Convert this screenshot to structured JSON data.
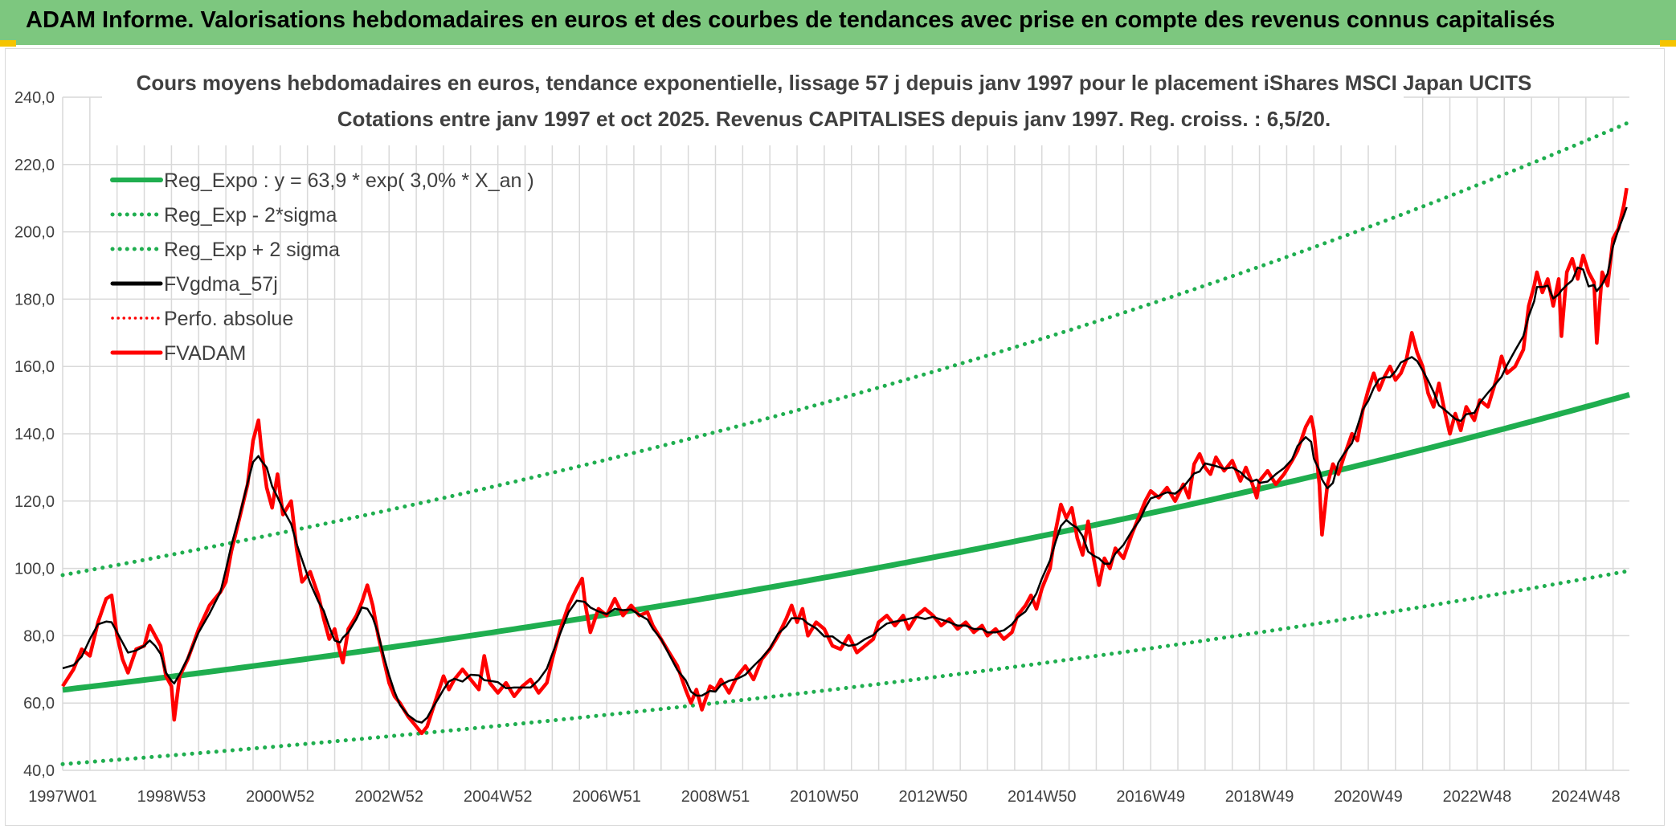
{
  "banner": {
    "title": "ADAM Informe. Valorisations hebdomadaires en euros et des courbes de tendances avec prise en compte des revenus connus capitalisés"
  },
  "colors": {
    "banner": "#7dc77f",
    "regression": "#1fae4f",
    "fvgdma": "#000000",
    "fvadam": "#ff0000",
    "grid": "#d9d9d9"
  },
  "chart_data": {
    "type": "line",
    "title": "Cours moyens hebdomadaires en euros, tendance exponentielle, lissage 57 j depuis janv 1997 pour le placement iShares MSCI Japan UCITS",
    "subtitle": "Cotations entre janv 1997 et oct 2025. Revenus CAPITALISES depuis janv 1997. Reg. croiss. : 6,5/20.",
    "xlabel": "",
    "ylabel": "",
    "ylim": [
      40,
      240
    ],
    "yticks": [
      "40,0",
      "60,0",
      "80,0",
      "100,0",
      "120,0",
      "140,0",
      "160,0",
      "180,0",
      "200,0",
      "220,0",
      "240,0"
    ],
    "xlim": [
      1997.0,
      2025.8
    ],
    "xticks": [
      {
        "label": "1997W01",
        "x": 1997.0
      },
      {
        "label": "1998W53",
        "x": 1999.0
      },
      {
        "label": "2000W52",
        "x": 2001.0
      },
      {
        "label": "2002W52",
        "x": 2003.0
      },
      {
        "label": "2004W52",
        "x": 2005.0
      },
      {
        "label": "2006W51",
        "x": 2007.0
      },
      {
        "label": "2008W51",
        "x": 2009.0
      },
      {
        "label": "2010W50",
        "x": 2011.0
      },
      {
        "label": "2012W50",
        "x": 2013.0
      },
      {
        "label": "2014W50",
        "x": 2015.0
      },
      {
        "label": "2016W49",
        "x": 2017.0
      },
      {
        "label": "2018W49",
        "x": 2019.0
      },
      {
        "label": "2020W49",
        "x": 2021.0
      },
      {
        "label": "2022W48",
        "x": 2023.0
      },
      {
        "label": "2024W48",
        "x": 2025.0
      }
    ],
    "grid": true,
    "legend_position": "top-left",
    "regression": {
      "a": 63.9,
      "b": 0.03,
      "upper_factor": 1.534,
      "lower_factor": 0.655
    },
    "series": [
      {
        "name": "Reg_Expo : y = 63,9 * exp( 3,0% *  X_an )",
        "color": "#1fae4f",
        "style": "solid",
        "formula": "base"
      },
      {
        "name": "Reg_Exp - 2*sigma",
        "color": "#1fae4f",
        "style": "dotted",
        "formula": "lower"
      },
      {
        "name": "Reg_Exp + 2 sigma",
        "color": "#1fae4f",
        "style": "dotted",
        "formula": "upper"
      },
      {
        "name": "FVgdma_57j",
        "color": "#000000",
        "style": "solid",
        "formula": "smooth"
      },
      {
        "name": "Perfo. absolue",
        "color": "#ff0000",
        "style": "dotted",
        "formula": "none"
      },
      {
        "name": "FVADAM",
        "color": "#ff0000",
        "style": "solid",
        "formula": "raw"
      }
    ],
    "fvadam_points": [
      [
        1997.0,
        65
      ],
      [
        1997.2,
        70
      ],
      [
        1997.35,
        76
      ],
      [
        1997.5,
        74
      ],
      [
        1997.65,
        84
      ],
      [
        1997.8,
        91
      ],
      [
        1997.9,
        92
      ],
      [
        1998.0,
        80
      ],
      [
        1998.1,
        73
      ],
      [
        1998.2,
        69
      ],
      [
        1998.35,
        76
      ],
      [
        1998.5,
        77
      ],
      [
        1998.6,
        83
      ],
      [
        1998.7,
        80
      ],
      [
        1998.8,
        77
      ],
      [
        1998.9,
        68
      ],
      [
        1999.0,
        65
      ],
      [
        1999.05,
        55
      ],
      [
        1999.15,
        68
      ],
      [
        1999.3,
        73
      ],
      [
        1999.5,
        82
      ],
      [
        1999.7,
        89
      ],
      [
        1999.9,
        93
      ],
      [
        2000.0,
        96
      ],
      [
        2000.1,
        105
      ],
      [
        2000.25,
        115
      ],
      [
        2000.4,
        125
      ],
      [
        2000.5,
        138
      ],
      [
        2000.6,
        144
      ],
      [
        2000.65,
        136
      ],
      [
        2000.75,
        124
      ],
      [
        2000.85,
        118
      ],
      [
        2000.95,
        128
      ],
      [
        2001.05,
        116
      ],
      [
        2001.2,
        120
      ],
      [
        2001.3,
        106
      ],
      [
        2001.4,
        96
      ],
      [
        2001.55,
        99
      ],
      [
        2001.7,
        92
      ],
      [
        2001.8,
        85
      ],
      [
        2001.9,
        79
      ],
      [
        2002.0,
        82
      ],
      [
        2002.1,
        75
      ],
      [
        2002.15,
        72
      ],
      [
        2002.25,
        82
      ],
      [
        2002.4,
        86
      ],
      [
        2002.5,
        90
      ],
      [
        2002.6,
        95
      ],
      [
        2002.7,
        89
      ],
      [
        2002.8,
        80
      ],
      [
        2002.9,
        73
      ],
      [
        2003.0,
        66
      ],
      [
        2003.1,
        62
      ],
      [
        2003.2,
        60
      ],
      [
        2003.35,
        56
      ],
      [
        2003.5,
        53
      ],
      [
        2003.6,
        51
      ],
      [
        2003.7,
        53
      ],
      [
        2003.8,
        58
      ],
      [
        2003.9,
        63
      ],
      [
        2004.0,
        68
      ],
      [
        2004.1,
        64
      ],
      [
        2004.2,
        67
      ],
      [
        2004.35,
        70
      ],
      [
        2004.5,
        67
      ],
      [
        2004.65,
        64
      ],
      [
        2004.75,
        74
      ],
      [
        2004.85,
        66
      ],
      [
        2005.0,
        63
      ],
      [
        2005.15,
        66
      ],
      [
        2005.3,
        62
      ],
      [
        2005.45,
        65
      ],
      [
        2005.6,
        67
      ],
      [
        2005.75,
        63
      ],
      [
        2005.9,
        66
      ],
      [
        2006.0,
        73
      ],
      [
        2006.15,
        82
      ],
      [
        2006.3,
        89
      ],
      [
        2006.45,
        94
      ],
      [
        2006.55,
        97
      ],
      [
        2006.6,
        90
      ],
      [
        2006.7,
        81
      ],
      [
        2006.85,
        88
      ],
      [
        2007.0,
        86
      ],
      [
        2007.15,
        91
      ],
      [
        2007.3,
        86
      ],
      [
        2007.45,
        89
      ],
      [
        2007.6,
        86
      ],
      [
        2007.75,
        87
      ],
      [
        2007.85,
        83
      ],
      [
        2008.0,
        79
      ],
      [
        2008.15,
        75
      ],
      [
        2008.3,
        71
      ],
      [
        2008.45,
        64
      ],
      [
        2008.55,
        60
      ],
      [
        2008.65,
        64
      ],
      [
        2008.75,
        58
      ],
      [
        2008.9,
        65
      ],
      [
        2009.0,
        64
      ],
      [
        2009.1,
        67
      ],
      [
        2009.25,
        63
      ],
      [
        2009.4,
        68
      ],
      [
        2009.55,
        71
      ],
      [
        2009.7,
        67
      ],
      [
        2009.85,
        73
      ],
      [
        2010.0,
        76
      ],
      [
        2010.15,
        80
      ],
      [
        2010.3,
        85
      ],
      [
        2010.4,
        89
      ],
      [
        2010.5,
        84
      ],
      [
        2010.6,
        88
      ],
      [
        2010.7,
        80
      ],
      [
        2010.85,
        84
      ],
      [
        2011.0,
        82
      ],
      [
        2011.15,
        77
      ],
      [
        2011.3,
        76
      ],
      [
        2011.45,
        80
      ],
      [
        2011.6,
        75
      ],
      [
        2011.75,
        77
      ],
      [
        2011.9,
        79
      ],
      [
        2012.0,
        84
      ],
      [
        2012.15,
        86
      ],
      [
        2012.3,
        83
      ],
      [
        2012.45,
        86
      ],
      [
        2012.55,
        82
      ],
      [
        2012.7,
        86
      ],
      [
        2012.85,
        88
      ],
      [
        2013.0,
        86
      ],
      [
        2013.15,
        83
      ],
      [
        2013.3,
        85
      ],
      [
        2013.45,
        82
      ],
      [
        2013.6,
        84
      ],
      [
        2013.75,
        81
      ],
      [
        2013.9,
        83
      ],
      [
        2014.0,
        80
      ],
      [
        2014.15,
        82
      ],
      [
        2014.3,
        79
      ],
      [
        2014.45,
        81
      ],
      [
        2014.55,
        86
      ],
      [
        2014.7,
        89
      ],
      [
        2014.8,
        92
      ],
      [
        2014.9,
        88
      ],
      [
        2015.0,
        94
      ],
      [
        2015.15,
        100
      ],
      [
        2015.25,
        111
      ],
      [
        2015.35,
        119
      ],
      [
        2015.45,
        115
      ],
      [
        2015.55,
        118
      ],
      [
        2015.65,
        109
      ],
      [
        2015.75,
        104
      ],
      [
        2015.85,
        114
      ],
      [
        2015.95,
        103
      ],
      [
        2016.05,
        95
      ],
      [
        2016.15,
        103
      ],
      [
        2016.25,
        100
      ],
      [
        2016.35,
        106
      ],
      [
        2016.5,
        103
      ],
      [
        2016.65,
        110
      ],
      [
        2016.8,
        116
      ],
      [
        2016.9,
        120
      ],
      [
        2017.0,
        123
      ],
      [
        2017.15,
        121
      ],
      [
        2017.3,
        124
      ],
      [
        2017.45,
        120
      ],
      [
        2017.6,
        125
      ],
      [
        2017.7,
        121
      ],
      [
        2017.8,
        131
      ],
      [
        2017.9,
        134
      ],
      [
        2018.0,
        130
      ],
      [
        2018.1,
        128
      ],
      [
        2018.2,
        133
      ],
      [
        2018.35,
        129
      ],
      [
        2018.5,
        132
      ],
      [
        2018.65,
        126
      ],
      [
        2018.75,
        130
      ],
      [
        2018.85,
        126
      ],
      [
        2018.95,
        121
      ],
      [
        2019.0,
        126
      ],
      [
        2019.15,
        129
      ],
      [
        2019.3,
        125
      ],
      [
        2019.45,
        128
      ],
      [
        2019.6,
        132
      ],
      [
        2019.7,
        135
      ],
      [
        2019.85,
        142
      ],
      [
        2019.95,
        145
      ],
      [
        2020.0,
        141
      ],
      [
        2020.1,
        125
      ],
      [
        2020.15,
        110
      ],
      [
        2020.25,
        125
      ],
      [
        2020.35,
        131
      ],
      [
        2020.45,
        128
      ],
      [
        2020.55,
        133
      ],
      [
        2020.7,
        140
      ],
      [
        2020.8,
        138
      ],
      [
        2020.9,
        147
      ],
      [
        2021.0,
        153
      ],
      [
        2021.1,
        158
      ],
      [
        2021.2,
        153
      ],
      [
        2021.3,
        157
      ],
      [
        2021.4,
        160
      ],
      [
        2021.5,
        156
      ],
      [
        2021.6,
        158
      ],
      [
        2021.7,
        162
      ],
      [
        2021.8,
        170
      ],
      [
        2021.9,
        164
      ],
      [
        2022.0,
        160
      ],
      [
        2022.1,
        152
      ],
      [
        2022.2,
        148
      ],
      [
        2022.3,
        155
      ],
      [
        2022.4,
        147
      ],
      [
        2022.5,
        140
      ],
      [
        2022.6,
        146
      ],
      [
        2022.7,
        141
      ],
      [
        2022.8,
        148
      ],
      [
        2022.95,
        144
      ],
      [
        2023.05,
        150
      ],
      [
        2023.2,
        148
      ],
      [
        2023.35,
        156
      ],
      [
        2023.45,
        163
      ],
      [
        2023.55,
        158
      ],
      [
        2023.7,
        160
      ],
      [
        2023.85,
        165
      ],
      [
        2023.95,
        178
      ],
      [
        2024.05,
        184
      ],
      [
        2024.1,
        188
      ],
      [
        2024.2,
        182
      ],
      [
        2024.3,
        186
      ],
      [
        2024.4,
        178
      ],
      [
        2024.5,
        186
      ],
      [
        2024.55,
        169
      ],
      [
        2024.65,
        188
      ],
      [
        2024.75,
        192
      ],
      [
        2024.85,
        186
      ],
      [
        2024.95,
        193
      ],
      [
        2025.05,
        188
      ],
      [
        2025.15,
        185
      ],
      [
        2025.2,
        167
      ],
      [
        2025.3,
        188
      ],
      [
        2025.4,
        184
      ],
      [
        2025.5,
        198
      ],
      [
        2025.6,
        201
      ],
      [
        2025.7,
        208
      ],
      [
        2025.75,
        213
      ]
    ]
  },
  "legend_items": [
    {
      "label": "Reg_Expo : y = 63,9 * exp( 3,0% *  X_an )"
    },
    {
      "label": "Reg_Exp - 2*sigma"
    },
    {
      "label": "Reg_Exp + 2 sigma"
    },
    {
      "label": "FVgdma_57j"
    },
    {
      "label": "Perfo. absolue"
    },
    {
      "label": "FVADAM"
    }
  ]
}
